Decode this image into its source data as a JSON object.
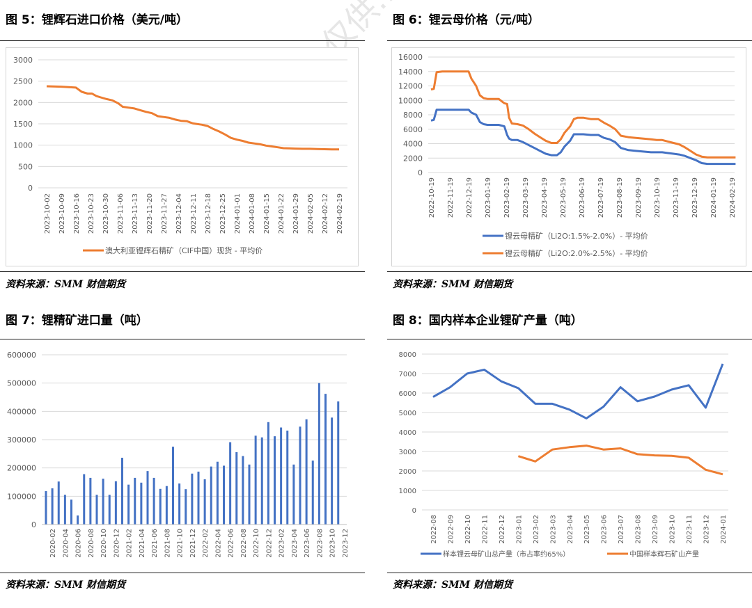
{
  "panels": [
    {
      "title": "图 5：锂辉石进口价格（美元/吨）",
      "source": "资料来源：SMM  财信期货"
    },
    {
      "title": "图 6：锂云母价格（元/吨）",
      "source": "资料来源：SMM  财信期货"
    },
    {
      "title": "图 7：锂精矿进口量（吨）",
      "source": "资料来源：SMM  财信期货"
    },
    {
      "title": "图 8：国内样本企业锂矿产量（吨）",
      "source": "资料来源：SMM  财信期货"
    }
  ],
  "watermark": "内容不代表…仅供…不构成…",
  "colors": {
    "blue": "#4472C4",
    "orange": "#ED7D31",
    "grid": "#d9d9d9",
    "axis_text": "#595959"
  },
  "chart_data": [
    {
      "type": "line",
      "ylim": [
        0,
        3000
      ],
      "yticks": [
        0,
        500,
        1000,
        1500,
        2000,
        2500,
        3000
      ],
      "xtick_labels": [
        "2023-10-02",
        "2023-10-09",
        "2023-10-16",
        "2023-10-23",
        "2023-10-30",
        "2023-11-06",
        "2023-11-13",
        "2023-11-20",
        "2023-11-27",
        "2023-12-04",
        "2023-12-11",
        "2023-12-18",
        "2023-12-25",
        "2024-01-01",
        "2024-01-08",
        "2024-01-15",
        "2024-01-22",
        "2024-01-29",
        "2024-02-05",
        "2024-02-12",
        "2024-02-19"
      ],
      "series": [
        {
          "name": "澳大利亚锂辉石精矿（CIF中国）现货 - 平均价",
          "color": "#ED7D31",
          "x": [
            0,
            1,
            1.5,
            2,
            2.4,
            2.8,
            3.1,
            3.4,
            3.7,
            4.1,
            4.5,
            4.9,
            5.2,
            5.6,
            6,
            6.4,
            6.8,
            7.2,
            7.6,
            8,
            8.4,
            8.8,
            9.2,
            9.6,
            10,
            10.2,
            10.6,
            11,
            11.4,
            11.8,
            12.2,
            12.6,
            13,
            13.4,
            13.8,
            14.2,
            14.6,
            15,
            15.4,
            15.8,
            16.2,
            16.6,
            17,
            17.5,
            18,
            18.5,
            19,
            19.5,
            20
          ],
          "y": [
            2380,
            2370,
            2360,
            2350,
            2250,
            2210,
            2210,
            2150,
            2120,
            2080,
            2050,
            1980,
            1900,
            1880,
            1860,
            1820,
            1780,
            1750,
            1680,
            1660,
            1640,
            1600,
            1570,
            1560,
            1510,
            1500,
            1480,
            1450,
            1380,
            1320,
            1250,
            1170,
            1130,
            1100,
            1060,
            1040,
            1020,
            990,
            970,
            950,
            930,
            925,
            920,
            915,
            915,
            910,
            905,
            900,
            900
          ]
        }
      ]
    },
    {
      "type": "line",
      "ylim": [
        0,
        16000
      ],
      "yticks": [
        0,
        2000,
        4000,
        6000,
        8000,
        10000,
        12000,
        14000,
        16000
      ],
      "xtick_labels": [
        "2022-10-19",
        "2022-11-19",
        "2022-12-19",
        "2023-01-19",
        "2023-02-19",
        "2023-03-19",
        "2023-04-19",
        "2023-05-19",
        "2023-06-19",
        "2023-07-19",
        "2023-08-19",
        "2023-09-19",
        "2023-10-19",
        "2023-11-19",
        "2023-12-19",
        "2024-01-19",
        "2024-02-19"
      ],
      "series": [
        {
          "name": "锂云母精矿（Li2O:1.5%-2.0%）- 平均价",
          "color": "#4472C4",
          "x": [
            0,
            0.15,
            0.3,
            0.6,
            1,
            1.5,
            2,
            2.15,
            2.4,
            2.6,
            2.8,
            3,
            3.3,
            3.6,
            3.9,
            4.05,
            4.15,
            4.3,
            4.6,
            4.9,
            5.2,
            5.5,
            5.8,
            6.1,
            6.4,
            6.7,
            6.9,
            7.1,
            7.4,
            7.6,
            7.8,
            8.1,
            8.5,
            8.9,
            9.2,
            9.5,
            9.8,
            10.1,
            10.5,
            10.9,
            11.3,
            11.7,
            12,
            12.3,
            12.6,
            12.9,
            13.2,
            13.5,
            13.8,
            14.1,
            14.4,
            14.7,
            15,
            15.4,
            15.8,
            16.2
          ],
          "y": [
            7200,
            7300,
            8700,
            8700,
            8700,
            8700,
            8700,
            8300,
            8000,
            7000,
            6700,
            6600,
            6600,
            6600,
            6400,
            5200,
            4700,
            4500,
            4500,
            4200,
            3800,
            3400,
            3000,
            2600,
            2400,
            2400,
            2800,
            3600,
            4400,
            5300,
            5300,
            5300,
            5200,
            5200,
            4800,
            4600,
            4200,
            3400,
            3100,
            3000,
            2900,
            2800,
            2800,
            2800,
            2700,
            2600,
            2500,
            2300,
            2000,
            1700,
            1300,
            1200,
            1200,
            1200,
            1200,
            1200
          ]
        },
        {
          "name": "锂云母精矿（Li2O:2.0%-2.5%）- 平均价",
          "color": "#ED7D31",
          "x": [
            0,
            0.15,
            0.3,
            0.6,
            1,
            1.5,
            2,
            2.15,
            2.4,
            2.6,
            2.8,
            3,
            3.3,
            3.6,
            3.9,
            4.05,
            4.15,
            4.3,
            4.6,
            4.9,
            5.2,
            5.5,
            5.8,
            6.1,
            6.4,
            6.7,
            6.9,
            7.1,
            7.4,
            7.6,
            7.8,
            8.1,
            8.5,
            8.9,
            9.2,
            9.5,
            9.8,
            10.1,
            10.5,
            10.9,
            11.3,
            11.7,
            12,
            12.3,
            12.6,
            12.9,
            13.2,
            13.5,
            13.8,
            14.1,
            14.4,
            14.7,
            15,
            15.4,
            15.8,
            16.2
          ],
          "y": [
            11500,
            11600,
            13900,
            14000,
            14000,
            14000,
            14000,
            13000,
            12000,
            10700,
            10300,
            10200,
            10200,
            10200,
            9600,
            9500,
            7600,
            6800,
            6700,
            6500,
            6000,
            5400,
            4900,
            4400,
            4100,
            4100,
            4600,
            5500,
            6400,
            7400,
            7600,
            7600,
            7400,
            7400,
            6900,
            6500,
            6000,
            5100,
            4900,
            4800,
            4700,
            4600,
            4500,
            4500,
            4300,
            4100,
            3900,
            3500,
            3000,
            2500,
            2200,
            2100,
            2100,
            2100,
            2100,
            2100
          ]
        }
      ]
    },
    {
      "type": "bar",
      "ylim": [
        0,
        600000
      ],
      "yticks": [
        0,
        100000,
        200000,
        300000,
        400000,
        500000,
        600000
      ],
      "xtick_labels": [
        "2020-02",
        "2020-04",
        "2020-06",
        "2020-08",
        "2020-10",
        "2020-12",
        "2021-02",
        "2021-04",
        "2021-06",
        "2021-08",
        "2021-10",
        "2021-12",
        "2022-02",
        "2022-04",
        "2022-06",
        "2022-08",
        "2022-10",
        "2022-12",
        "2023-02",
        "2023-04",
        "2023-06",
        "2023-08",
        "2023-10",
        "2023-12"
      ],
      "categories": [
        "2020-01",
        "2020-02",
        "2020-03",
        "2020-04",
        "2020-05",
        "2020-06",
        "2020-07",
        "2020-08",
        "2020-09",
        "2020-10",
        "2020-11",
        "2020-12",
        "2021-01",
        "2021-02",
        "2021-03",
        "2021-04",
        "2021-05",
        "2021-06",
        "2021-07",
        "2021-08",
        "2021-09",
        "2021-10",
        "2021-11",
        "2021-12",
        "2022-01",
        "2022-02",
        "2022-03",
        "2022-04",
        "2022-05",
        "2022-06",
        "2022-07",
        "2022-08",
        "2022-09",
        "2022-10",
        "2022-11",
        "2022-12",
        "2023-01",
        "2023-02",
        "2023-03",
        "2023-04",
        "2023-05",
        "2023-06",
        "2023-07",
        "2023-08",
        "2023-09",
        "2023-10",
        "2023-11",
        "2023-12"
      ],
      "series": [
        {
          "name": "",
          "color": "#4472C4",
          "values": [
            118000,
            128000,
            152000,
            105000,
            88000,
            32000,
            178000,
            165000,
            105000,
            162000,
            105000,
            153000,
            236000,
            141000,
            165000,
            148000,
            189000,
            165000,
            126000,
            136000,
            275000,
            145000,
            125000,
            180000,
            187000,
            160000,
            205000,
            222000,
            208000,
            291000,
            256000,
            242000,
            212000,
            314000,
            308000,
            362000,
            312000,
            343000,
            332000,
            212000,
            346000,
            372000,
            226000,
            500000,
            462000,
            378000,
            435000,
            0
          ]
        }
      ]
    },
    {
      "type": "line",
      "ylim": [
        0,
        8000
      ],
      "yticks": [
        0,
        1000,
        2000,
        3000,
        4000,
        5000,
        6000,
        7000,
        8000
      ],
      "categories": [
        "2022-08",
        "2022-09",
        "2022-10",
        "2022-11",
        "2022-12",
        "2023-01",
        "2023-02",
        "2023-03",
        "2023-04",
        "2023-05",
        "2023-06",
        "2023-07",
        "2023-08",
        "2023-09",
        "2023-10",
        "2023-11",
        "2023-12",
        "2024-01"
      ],
      "series": [
        {
          "name": "样本锂云母矿山总产量（市占率约65%）",
          "color": "#4472C4",
          "values": [
            5800,
            6300,
            7000,
            7200,
            6600,
            6250,
            5450,
            5450,
            5150,
            4700,
            5300,
            6300,
            5580,
            5820,
            6180,
            6400,
            5250,
            7500
          ]
        },
        {
          "name": "中国样本辉石矿山产量",
          "color": "#ED7D31",
          "values": [
            null,
            null,
            null,
            null,
            null,
            2760,
            2490,
            3100,
            3220,
            3300,
            3100,
            3160,
            2860,
            2800,
            2780,
            2680,
            2060,
            1830
          ]
        }
      ]
    }
  ]
}
